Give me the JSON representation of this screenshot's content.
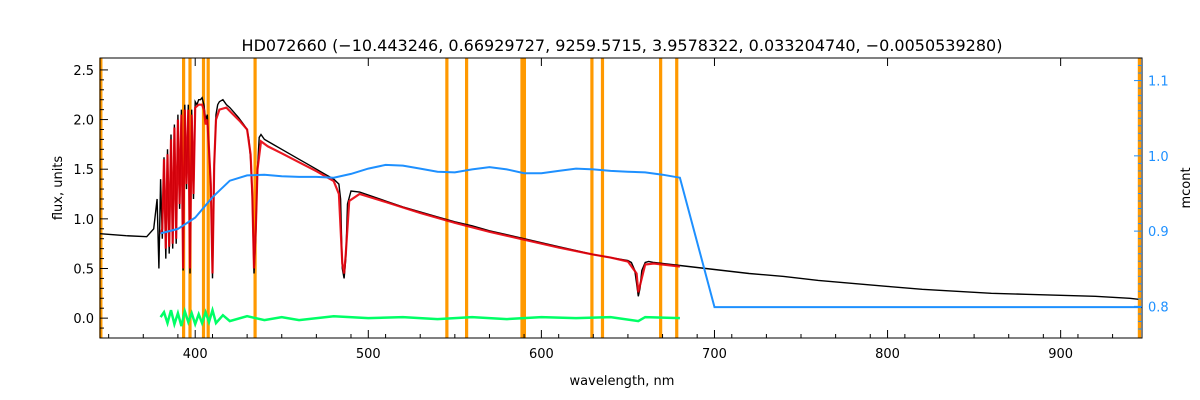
{
  "chart_data": {
    "type": "line",
    "title": "HD072660    (−10.443246, 0.66929727, 9259.5715, 3.9578322, 0.033204740, −0.0050539280)",
    "xlabel": "wavelength, nm",
    "ylabel": "flux, units",
    "y2label": "mcont",
    "xlim": [
      345,
      947
    ],
    "ylim": [
      -0.2,
      2.62
    ],
    "y2lim": [
      0.758,
      1.13
    ],
    "x_ticks": [
      400,
      500,
      600,
      700,
      800,
      900
    ],
    "y_ticks": [
      0.0,
      0.5,
      1.0,
      1.5,
      2.0,
      2.5
    ],
    "y_tick_labels": [
      "0.0",
      "0.5",
      "1.0",
      "1.5",
      "2.0",
      "2.5"
    ],
    "y2_ticks": [
      0.8,
      0.9,
      1.0,
      1.1
    ],
    "y2_tick_labels": [
      "0.8",
      "0.9",
      "1.0",
      "1.1"
    ],
    "grid": false,
    "colors": {
      "observed": "#000000",
      "model": "#e8000b",
      "residual": "#00ff66",
      "mcont": "#1e90ff",
      "mask": "#ff9900"
    },
    "mask_lines": [
      345.5,
      393.3,
      397.0,
      404.8,
      407.5,
      434.6,
      545.4,
      556.8,
      588.8,
      590.2,
      629.2,
      635.3,
      668.9,
      678.2,
      945.5
    ],
    "series": [
      {
        "role": "observed",
        "x": [
          345,
          360,
          372,
          376,
          378,
          379,
          380,
          381,
          382,
          383,
          384,
          385,
          386,
          387,
          388,
          389,
          390,
          391,
          392,
          393,
          394,
          395,
          396,
          397,
          398,
          399,
          400,
          401,
          402,
          403,
          404,
          405,
          406,
          407,
          408,
          409,
          410,
          411,
          412,
          413,
          414,
          416,
          418,
          420,
          422,
          425,
          428,
          430,
          431,
          432,
          433,
          434,
          435,
          436,
          437,
          438,
          440,
          442,
          445,
          450,
          455,
          460,
          465,
          470,
          475,
          480,
          483,
          484,
          485,
          486,
          487,
          488,
          490,
          495,
          500,
          510,
          520,
          530,
          540,
          550,
          560,
          570,
          580,
          590,
          600,
          610,
          620,
          630,
          640,
          650,
          652,
          654,
          655,
          656,
          657,
          658,
          660,
          662,
          665,
          670,
          680,
          700,
          720,
          740,
          760,
          780,
          800,
          820,
          840,
          860,
          880,
          900,
          920,
          940,
          945
        ],
        "y": [
          0.85,
          0.83,
          0.82,
          0.9,
          1.2,
          0.5,
          1.4,
          0.8,
          1.62,
          0.6,
          1.7,
          0.65,
          1.85,
          0.7,
          1.95,
          0.75,
          2.05,
          1.1,
          2.1,
          0.48,
          2.15,
          1.3,
          2.15,
          0.45,
          2.1,
          1.2,
          2.18,
          2.15,
          2.2,
          2.2,
          2.22,
          2.15,
          2.0,
          2.05,
          1.7,
          1.3,
          0.4,
          1.5,
          2.05,
          2.15,
          2.18,
          2.2,
          2.15,
          2.12,
          2.08,
          2.02,
          1.95,
          1.9,
          1.8,
          1.6,
          1.2,
          0.45,
          0.85,
          1.5,
          1.82,
          1.85,
          1.8,
          1.78,
          1.75,
          1.7,
          1.65,
          1.6,
          1.55,
          1.5,
          1.45,
          1.4,
          1.35,
          1.2,
          0.5,
          0.4,
          0.6,
          1.15,
          1.28,
          1.27,
          1.24,
          1.18,
          1.12,
          1.07,
          1.02,
          0.97,
          0.93,
          0.88,
          0.84,
          0.8,
          0.76,
          0.72,
          0.68,
          0.64,
          0.61,
          0.58,
          0.56,
          0.48,
          0.35,
          0.22,
          0.3,
          0.48,
          0.56,
          0.57,
          0.56,
          0.55,
          0.53,
          0.49,
          0.45,
          0.42,
          0.38,
          0.35,
          0.32,
          0.29,
          0.27,
          0.25,
          0.24,
          0.23,
          0.22,
          0.2,
          0.19
        ]
      },
      {
        "role": "model",
        "x": [
          380,
          381,
          382,
          383,
          384,
          385,
          386,
          387,
          388,
          389,
          390,
          391,
          392,
          393,
          394,
          395,
          396,
          397,
          398,
          399,
          400,
          402,
          404,
          405,
          406,
          407,
          408,
          409,
          410,
          411,
          412,
          414,
          418,
          422,
          426,
          430,
          432,
          433,
          434,
          435,
          436,
          438,
          442,
          450,
          460,
          470,
          480,
          483,
          485,
          486,
          487,
          489,
          495,
          510,
          530,
          550,
          570,
          590,
          610,
          630,
          640,
          650,
          655,
          656,
          657,
          660,
          665,
          670,
          680
        ],
        "y": [
          0.85,
          0.9,
          1.6,
          0.7,
          1.65,
          0.72,
          1.8,
          0.75,
          1.92,
          0.8,
          2.0,
          1.15,
          2.05,
          0.5,
          2.1,
          1.35,
          2.1,
          0.5,
          2.05,
          1.25,
          2.12,
          2.15,
          2.15,
          2.1,
          1.95,
          2.0,
          1.7,
          1.35,
          0.45,
          1.55,
          2.0,
          2.1,
          2.12,
          2.05,
          1.98,
          1.9,
          1.65,
          1.25,
          0.5,
          0.9,
          1.5,
          1.78,
          1.73,
          1.66,
          1.57,
          1.48,
          1.38,
          1.25,
          0.55,
          0.45,
          0.65,
          1.18,
          1.25,
          1.17,
          1.06,
          0.96,
          0.87,
          0.79,
          0.71,
          0.64,
          0.61,
          0.57,
          0.45,
          0.26,
          0.33,
          0.54,
          0.55,
          0.54,
          0.52
        ]
      },
      {
        "role": "mcont",
        "axis": "right",
        "x": [
          380,
          390,
          400,
          410,
          420,
          430,
          440,
          450,
          460,
          470,
          480,
          490,
          500,
          510,
          520,
          530,
          540,
          550,
          560,
          570,
          580,
          590,
          600,
          610,
          620,
          630,
          640,
          650,
          660,
          670,
          680,
          700,
          720,
          760,
          800,
          850,
          900,
          947
        ],
        "y": [
          0.897,
          0.903,
          0.918,
          0.945,
          0.967,
          0.974,
          0.975,
          0.973,
          0.972,
          0.972,
          0.971,
          0.976,
          0.983,
          0.988,
          0.987,
          0.983,
          0.979,
          0.978,
          0.982,
          0.985,
          0.982,
          0.977,
          0.977,
          0.98,
          0.983,
          0.982,
          0.98,
          0.979,
          0.978,
          0.975,
          0.971,
          0.799,
          0.799,
          0.799,
          0.799,
          0.799,
          0.799,
          0.799
        ]
      },
      {
        "role": "residual",
        "x": [
          380,
          382,
          384,
          386,
          388,
          390,
          392,
          394,
          396,
          398,
          400,
          402,
          404,
          406,
          408,
          410,
          412,
          416,
          420,
          430,
          440,
          450,
          460,
          480,
          500,
          520,
          540,
          560,
          580,
          600,
          620,
          640,
          656,
          660,
          680
        ],
        "y": [
          0.01,
          0.06,
          -0.05,
          0.08,
          -0.06,
          0.05,
          -0.08,
          0.07,
          -0.04,
          0.05,
          -0.06,
          0.04,
          -0.05,
          0.06,
          -0.04,
          0.08,
          -0.05,
          0.03,
          -0.03,
          0.02,
          -0.02,
          0.01,
          -0.02,
          0.02,
          0.0,
          0.01,
          -0.01,
          0.01,
          -0.01,
          0.01,
          0.0,
          0.01,
          -0.03,
          0.01,
          0.0
        ]
      }
    ]
  }
}
